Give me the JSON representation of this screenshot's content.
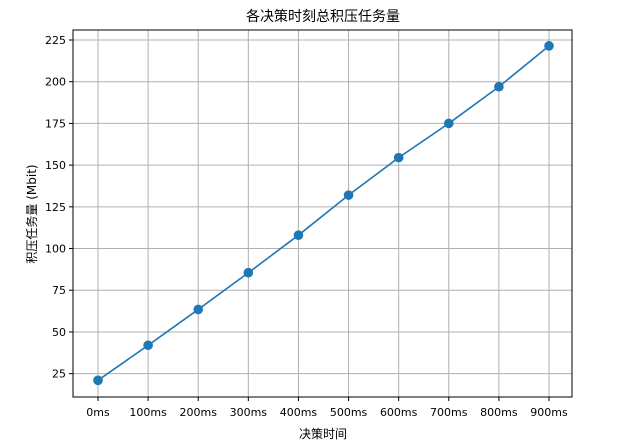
{
  "chart_data": {
    "type": "line",
    "title": "各决策时刻总积压任务量",
    "xlabel": "决策时间",
    "ylabel": "积压任务量 (Mbit)",
    "categories": [
      "0ms",
      "100ms",
      "200ms",
      "300ms",
      "400ms",
      "500ms",
      "600ms",
      "700ms",
      "800ms",
      "900ms"
    ],
    "series": [
      {
        "values": [
          21,
          42,
          63.5,
          85.5,
          108,
          132,
          154.5,
          175,
          197,
          221.5
        ],
        "color": "#1f77b4",
        "marker": "circle"
      }
    ],
    "ylim": [
      11,
      231
    ],
    "yticks": [
      25,
      50,
      75,
      100,
      125,
      150,
      175,
      200,
      225
    ],
    "grid": true,
    "legend": "none"
  }
}
